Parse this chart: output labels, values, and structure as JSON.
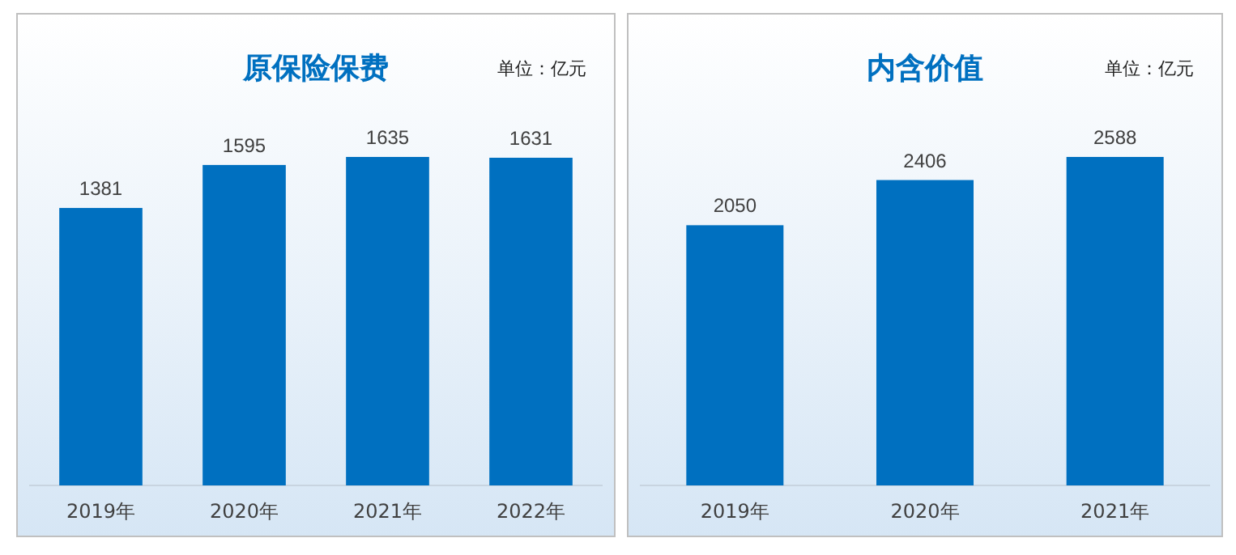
{
  "chart_data": [
    {
      "type": "bar",
      "title": "原保险保费",
      "annotations": [
        "单位：亿元"
      ],
      "categories": [
        "2019年",
        "2020年",
        "2021年",
        "2022年"
      ],
      "values": [
        1381,
        1595,
        1635,
        1631
      ],
      "color": "#0070c0",
      "data_labels": true
    },
    {
      "type": "bar",
      "title": "内含价值",
      "annotations": [
        "单位：亿元"
      ],
      "categories": [
        "2019年",
        "2020年",
        "2021年"
      ],
      "values": [
        2050,
        2406,
        2588
      ],
      "color": "#0070c0",
      "data_labels": true
    }
  ]
}
